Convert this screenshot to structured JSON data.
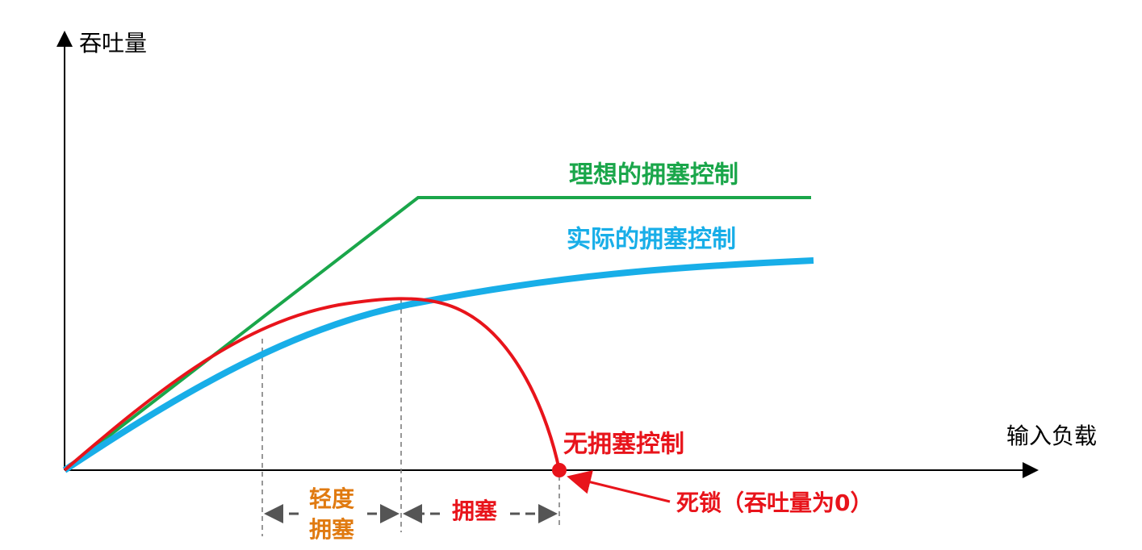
{
  "axes": {
    "y_label": "吞吐量",
    "x_label": "输入负载"
  },
  "curves": [
    {
      "label": "理想的拥塞控制"
    },
    {
      "label": "实际的拥塞控制"
    },
    {
      "label": "无拥塞控制"
    }
  ],
  "regions": [
    {
      "lines": [
        "轻度",
        "拥塞"
      ]
    },
    {
      "lines": [
        "拥塞"
      ]
    }
  ],
  "annotation": "死锁（吞吐量为0）"
}
